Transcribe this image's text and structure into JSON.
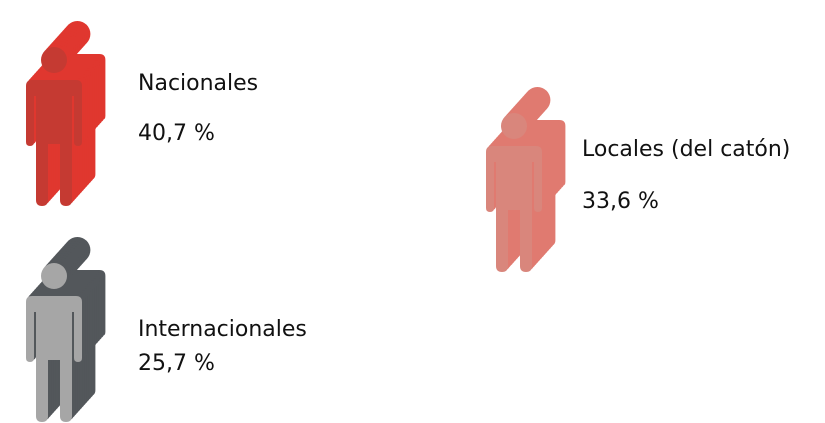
{
  "chart_data": {
    "type": "pictogram",
    "categories": [
      "Nacionales",
      "Locales (del catón)",
      "Internacionales"
    ],
    "values": [
      40.7,
      33.6,
      25.7
    ],
    "value_labels": [
      "40,7 %",
      "33,6 %",
      "25,7 %"
    ],
    "colors": [
      "#c53a32",
      "#d9867c",
      "#a6a6a6"
    ],
    "back_colors": [
      "#e0372f",
      "#e07a70",
      "#53575b"
    ]
  }
}
